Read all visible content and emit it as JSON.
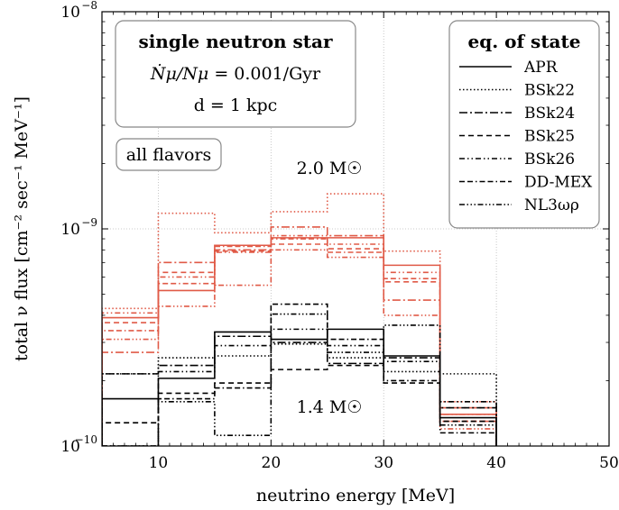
{
  "chart_data": {
    "type": "step",
    "title": "",
    "xlabel": "neutrino energy [MeV]",
    "ylabel": "total ν flux [cm⁻² sec⁻¹ MeV⁻¹]",
    "xlim": [
      5,
      50
    ],
    "ylim": [
      1e-10,
      1e-08
    ],
    "yscale": "log",
    "grid": true,
    "x_ticks": [
      10,
      20,
      30,
      40,
      50
    ],
    "y_ticks": [
      {
        "value": 1e-10,
        "mantissa": "10",
        "exp": "−10"
      },
      {
        "value": 1e-09,
        "mantissa": "10",
        "exp": "−9"
      },
      {
        "value": 1e-08,
        "mantissa": "10",
        "exp": "−8"
      }
    ],
    "bin_edges": [
      5,
      10,
      15,
      20,
      25,
      30,
      35,
      40
    ],
    "groups": [
      {
        "label": "2.0 M☉",
        "color": "#e05a47",
        "series": [
          {
            "eos": "APR",
            "values": [
              3.9e-10,
              5.2e-10,
              8.4e-10,
              9.1e-10,
              9.1e-10,
              6.8e-10,
              1.4e-10
            ]
          },
          {
            "eos": "BSk22",
            "values": [
              4.3e-10,
              1.18e-09,
              9.6e-10,
              1.2e-09,
              1.45e-09,
              7.9e-10,
              1.6e-10
            ]
          },
          {
            "eos": "BSk24",
            "values": [
              2.7e-10,
              7e-10,
              8e-10,
              1.02e-09,
              9.3e-10,
              4.7e-10,
              1.5e-10
            ]
          },
          {
            "eos": "BSk25",
            "values": [
              3.7e-10,
              6.3e-10,
              7.9e-10,
              8.5e-10,
              8.1e-10,
              5.7e-10,
              1.3e-10
            ]
          },
          {
            "eos": "BSk26",
            "values": [
              4.1e-10,
              6e-10,
              7.8e-10,
              9.3e-10,
              8.5e-10,
              6.3e-10,
              1.4e-10
            ]
          },
          {
            "eos": "DD-MEX",
            "values": [
              3.4e-10,
              5.6e-10,
              8.3e-10,
              9e-10,
              7.8e-10,
              5.9e-10,
              1.3e-10
            ]
          },
          {
            "eos": "NL3ωρ",
            "values": [
              3.1e-10,
              4.4e-10,
              5.5e-10,
              8e-10,
              7.4e-10,
              4e-10,
              1.2e-10
            ]
          }
        ]
      },
      {
        "label": "1.4 M☉",
        "color": "#000000",
        "series": [
          {
            "eos": "APR",
            "values": [
              1.65e-10,
              2.05e-10,
              3.35e-10,
              3.1e-10,
              3.45e-10,
              2.6e-10,
              1.35e-10
            ]
          },
          {
            "eos": "BSk22",
            "values": [
              2.15e-10,
              2.55e-10,
              2.6e-10,
              2.95e-10,
              2.55e-10,
              2.2e-10,
              2.15e-10
            ]
          },
          {
            "eos": "BSk24",
            "values": [
              2.15e-10,
              2.35e-10,
              3.2e-10,
              3e-10,
              2.4e-10,
              2.55e-10,
              1.5e-10
            ]
          },
          {
            "eos": "BSk25",
            "values": [
              1.28e-10,
              1.75e-10,
              1.95e-10,
              2.25e-10,
              2.35e-10,
              1.95e-10,
              1.3e-10
            ]
          },
          {
            "eos": "BSk26",
            "values": [
              1e-10,
              2.2e-10,
              2.9e-10,
              3.45e-10,
              2.9e-10,
              2.45e-10,
              1.6e-10
            ]
          },
          {
            "eos": "DD-MEX",
            "values": [
              1e-10,
              1.65e-10,
              1.85e-10,
              4.5e-10,
              3.1e-10,
              2e-10,
              1.15e-10
            ]
          },
          {
            "eos": "NL3ωρ",
            "values": [
              1e-10,
              1.6e-10,
              1.12e-10,
              4.05e-10,
              2.7e-10,
              3.6e-10,
              1.25e-10
            ]
          }
        ]
      }
    ],
    "legend": {
      "title": "eq. of state",
      "placement": "top-right",
      "entries": [
        {
          "label": "APR",
          "dash": "solid"
        },
        {
          "label": "BSk22",
          "dash": "dotted"
        },
        {
          "label": "BSk24",
          "dash": "dashdot"
        },
        {
          "label": "BSk25",
          "dash": "dashed"
        },
        {
          "label": "BSk26",
          "dash": "dashdotdot"
        },
        {
          "label": "DD-MEX",
          "dash": "dashdashdot"
        },
        {
          "label": "NL3ωρ",
          "dash": "dashdotdotdot"
        }
      ]
    },
    "info_box": {
      "title": "single neutron star",
      "rate_lhs": "Ṅμ/Nμ",
      "rate_rhs": " = 0.001/Gyr",
      "distance": "d = 1 kpc"
    },
    "flavor_box": "all flavors"
  },
  "dash_styles": {
    "solid": "",
    "dotted": "1.5 2.5",
    "dashdot": "9 3 2 3",
    "dashed": "6 4",
    "dashdotdot": "6 3 1.5 3 1.5 3",
    "dashdashdot": "6 3 6 3 1.5 3",
    "dashdotdotdot": "6 2.5 1.5 2.5 1.5 2.5 1.5 2.5"
  }
}
